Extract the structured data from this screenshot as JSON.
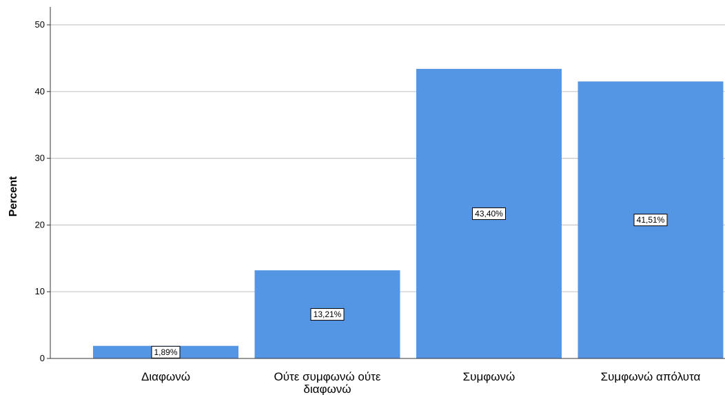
{
  "chart_data": {
    "type": "bar",
    "categories": [
      "Διαφωνώ",
      "Ούτε συμφωνώ ούτε διαφωνώ",
      "Συμφωνώ",
      "Συμφωνώ απόλυτα"
    ],
    "category_label_lines": [
      [
        "Διαφωνώ"
      ],
      [
        "Ούτε συμφωνώ ούτε",
        "διαφωνώ"
      ],
      [
        "Συμφωνώ"
      ],
      [
        "Συμφωνώ απόλυτα"
      ]
    ],
    "values": [
      1.89,
      13.21,
      43.4,
      41.51
    ],
    "data_labels": [
      "1,89%",
      "13,21%",
      "43,40%",
      "41,51%"
    ],
    "ylabel": "Percent",
    "xlabel": "",
    "ylim": [
      0,
      50
    ],
    "yticks": [
      0,
      10,
      20,
      30,
      40,
      50
    ],
    "grid": true,
    "colors": {
      "bar": "#5596e4",
      "grid": "#c8c8c8",
      "axis": "#333333"
    }
  }
}
